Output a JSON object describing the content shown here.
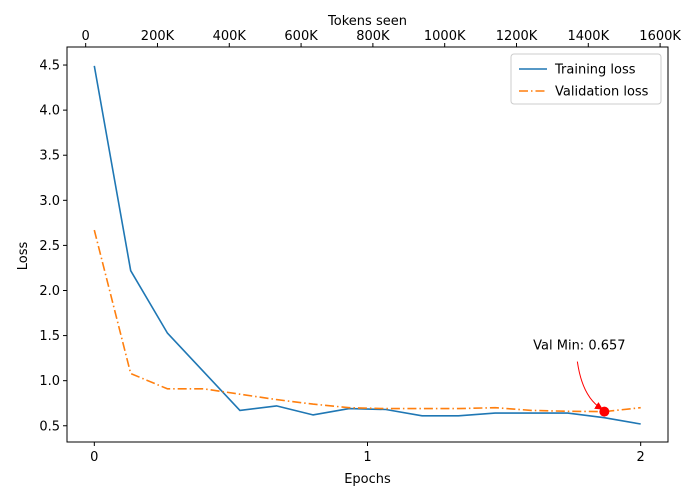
{
  "chart_data": {
    "type": "line",
    "title": "",
    "xlabel": "Epochs",
    "ylabel": "Loss",
    "x2label": "Tokens seen",
    "xlim": [
      -0.1,
      2.1
    ],
    "ylim": [
      0.32,
      4.7
    ],
    "x2lim": [
      -52000,
      1622000
    ],
    "xticks": [
      0,
      1,
      2
    ],
    "xtick_labels": [
      "0",
      "1",
      "2"
    ],
    "yticks": [
      0.5,
      1.0,
      1.5,
      2.0,
      2.5,
      3.0,
      3.5,
      4.0,
      4.5
    ],
    "ytick_labels": [
      "0.5",
      "1.0",
      "1.5",
      "2.0",
      "2.5",
      "3.0",
      "3.5",
      "4.0",
      "4.5"
    ],
    "x2ticks": [
      0,
      200000,
      400000,
      600000,
      800000,
      1000000,
      1200000,
      1400000,
      1600000
    ],
    "x2tick_labels": [
      "0",
      "200K",
      "400K",
      "600K",
      "800K",
      "1000K",
      "1200K",
      "1400K",
      "1600K"
    ],
    "grid": false,
    "legend_position": "top-right",
    "series": [
      {
        "name": "Training loss",
        "color": "#1f77b4",
        "style": "solid",
        "x": [
          0,
          0.133,
          0.267,
          0.4,
          0.533,
          0.667,
          0.8,
          0.933,
          1.067,
          1.2,
          1.333,
          1.467,
          1.6,
          1.733,
          1.867,
          2.0
        ],
        "y": [
          4.49,
          2.22,
          1.53,
          1.1,
          0.67,
          0.72,
          0.62,
          0.69,
          0.68,
          0.61,
          0.61,
          0.64,
          0.64,
          0.64,
          0.59,
          0.52
        ]
      },
      {
        "name": "Validation loss",
        "color": "#ff7f0e",
        "style": "dashdot",
        "x": [
          0,
          0.133,
          0.267,
          0.4,
          0.533,
          0.667,
          0.8,
          0.933,
          1.067,
          1.2,
          1.333,
          1.467,
          1.6,
          1.733,
          1.867,
          2.0
        ],
        "y": [
          2.67,
          1.08,
          0.91,
          0.91,
          0.85,
          0.79,
          0.74,
          0.7,
          0.69,
          0.69,
          0.69,
          0.7,
          0.67,
          0.66,
          0.657,
          0.7
        ]
      }
    ],
    "annotation": {
      "text": "Val Min: 0.657",
      "x": 1.867,
      "y": 0.657,
      "marker_color": "#ff0000",
      "arrow_color": "#ff0000"
    }
  }
}
